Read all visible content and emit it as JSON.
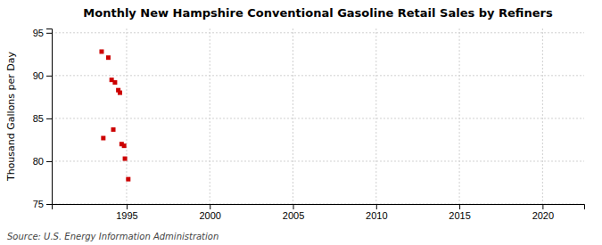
{
  "chart_data": {
    "type": "scatter",
    "title": "Monthly New Hampshire Conventional Gasoline Retail Sales by Refiners",
    "ylabel": "Thousand Gallons per Day",
    "source": "Source: U.S. Energy Information Administration",
    "x": [
      1993.5,
      1993.9,
      1994.1,
      1994.3,
      1994.5,
      1994.6,
      1993.6,
      1994.2,
      1994.7,
      1994.85,
      1994.9,
      1995.1
    ],
    "values": [
      92.8,
      92.1,
      89.5,
      89.2,
      88.3,
      88.0,
      82.7,
      83.7,
      82.0,
      81.8,
      80.3,
      77.9
    ],
    "color": "#cc0000",
    "marker": "square",
    "xlim": [
      1990.5,
      2022.5
    ],
    "ylim": [
      75,
      95.5
    ],
    "xticks": [
      1995,
      2000,
      2005,
      2010,
      2015,
      2020
    ],
    "yticks": [
      75,
      80,
      85,
      90,
      95
    ],
    "grid": true
  }
}
